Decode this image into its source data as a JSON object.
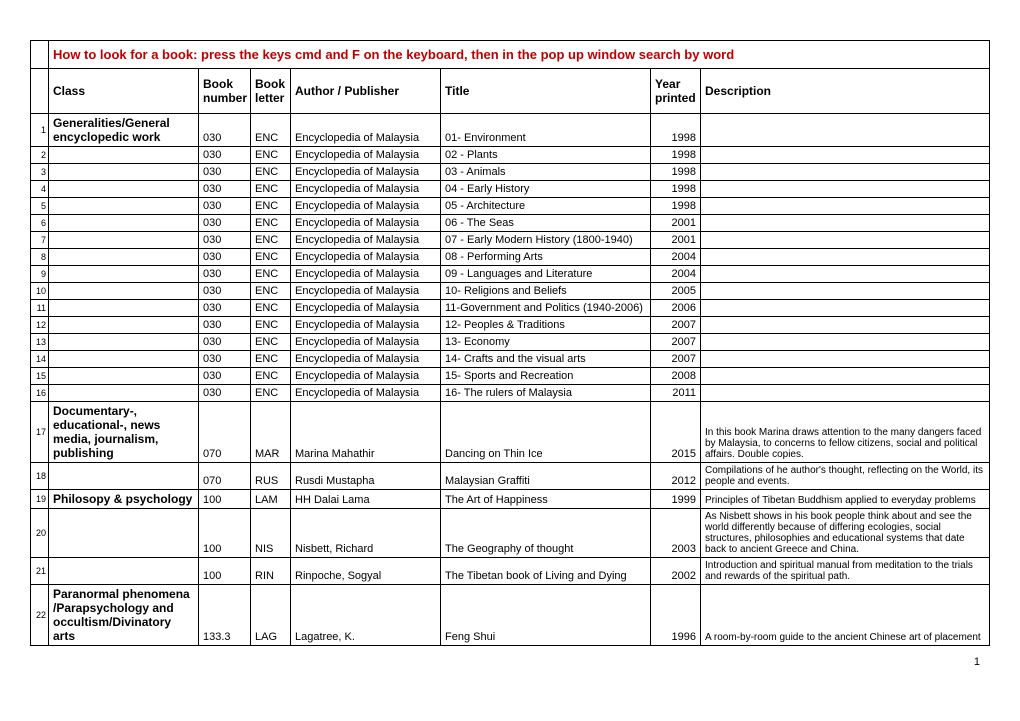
{
  "instruction": "How to look for a book: press the keys cmd and F on the keyboard, then in the pop up window search by word",
  "headers": {
    "class": "Class",
    "book_number": "Book number",
    "book_letter": "Book letter",
    "author": "Author / Publisher",
    "title": "Title",
    "year": "Year printed",
    "description": "Description"
  },
  "rows": [
    {
      "n": "1",
      "class": "Generalities/General encyclopedic work",
      "class_bold": true,
      "bn": "030",
      "bl": "ENC",
      "auth": "Encyclopedia of Malaysia",
      "title": "01- Environment",
      "year": "1998",
      "desc": ""
    },
    {
      "n": "2",
      "class": "",
      "bn": "030",
      "bl": "ENC",
      "auth": "Encyclopedia of Malaysia",
      "title": "02 - Plants",
      "year": "1998",
      "desc": ""
    },
    {
      "n": "3",
      "class": "",
      "bn": "030",
      "bl": "ENC",
      "auth": "Encyclopedia of Malaysia",
      "title": "03 - Animals",
      "year": "1998",
      "desc": ""
    },
    {
      "n": "4",
      "class": "",
      "bn": "030",
      "bl": "ENC",
      "auth": "Encyclopedia of Malaysia",
      "title": "04 - Early History",
      "year": "1998",
      "desc": ""
    },
    {
      "n": "5",
      "class": "",
      "bn": "030",
      "bl": "ENC",
      "auth": "Encyclopedia of Malaysia",
      "title": "05 - Architecture",
      "year": "1998",
      "desc": ""
    },
    {
      "n": "6",
      "class": "",
      "bn": "030",
      "bl": "ENC",
      "auth": "Encyclopedia of Malaysia",
      "title": "06 - The Seas",
      "year": "2001",
      "desc": ""
    },
    {
      "n": "7",
      "class": "",
      "bn": "030",
      "bl": "ENC",
      "auth": "Encyclopedia of Malaysia",
      "title": "07 - Early Modern History (1800-1940)",
      "year": "2001",
      "desc": ""
    },
    {
      "n": "8",
      "class": "",
      "bn": "030",
      "bl": "ENC",
      "auth": "Encyclopedia of Malaysia",
      "title": "08 - Performing Arts",
      "year": "2004",
      "desc": ""
    },
    {
      "n": "9",
      "class": "",
      "bn": "030",
      "bl": "ENC",
      "auth": "Encyclopedia of Malaysia",
      "title": "09 - Languages and Literature",
      "year": "2004",
      "desc": ""
    },
    {
      "n": "10",
      "class": "",
      "bn": "030",
      "bl": "ENC",
      "auth": "Encyclopedia of Malaysia",
      "title": "10- Religions and Beliefs",
      "year": "2005",
      "desc": ""
    },
    {
      "n": "11",
      "class": "",
      "bn": "030",
      "bl": "ENC",
      "auth": "Encyclopedia of Malaysia",
      "title": "11-Government and Politics (1940-2006)",
      "year": "2006",
      "desc": ""
    },
    {
      "n": "12",
      "class": "",
      "bn": "030",
      "bl": "ENC",
      "auth": "Encyclopedia of Malaysia",
      "title": "12- Peoples & Traditions",
      "year": "2007",
      "desc": ""
    },
    {
      "n": "13",
      "class": "",
      "bn": "030",
      "bl": "ENC",
      "auth": "Encyclopedia of Malaysia",
      "title": "13- Economy",
      "year": "2007",
      "desc": ""
    },
    {
      "n": "14",
      "class": "",
      "bn": "030",
      "bl": "ENC",
      "auth": "Encyclopedia of Malaysia",
      "title": "14- Crafts and the visual arts",
      "year": "2007",
      "desc": ""
    },
    {
      "n": "15",
      "class": "",
      "bn": "030",
      "bl": "ENC",
      "auth": "Encyclopedia of Malaysia",
      "title": "15- Sports and Recreation",
      "year": "2008",
      "desc": ""
    },
    {
      "n": "16",
      "class": "",
      "bn": "030",
      "bl": "ENC",
      "auth": "Encyclopedia of Malaysia",
      "title": "16- The rulers of Malaysia",
      "year": "2011",
      "desc": ""
    },
    {
      "n": "17",
      "class": "Documentary-, educational-, news media, journalism, publishing",
      "class_bold": true,
      "bn": "070",
      "bl": "MAR",
      "auth": "Marina Mahathir",
      "title": "Dancing on Thin Ice",
      "year": "2015",
      "desc": "In this book Marina draws attention to the many dangers faced by Malaysia, to concerns to fellow citizens, social and political affairs. Double copies."
    },
    {
      "n": "18",
      "class": "",
      "bn": "070",
      "bl": "RUS",
      "auth": "Rusdi Mustapha",
      "title": "Malaysian Graffiti",
      "year": "2012",
      "desc": "Compilations of he author's thought, reflecting on the World, its people and events."
    },
    {
      "n": "19",
      "class": "Philosopy & psychology",
      "class_bold": true,
      "bn": "100",
      "bl": "LAM",
      "auth": "HH Dalai Lama",
      "title": "The Art of Happiness",
      "year": "1999",
      "desc": "Principles of Tibetan Buddhism applied to everyday problems"
    },
    {
      "n": "20",
      "class": "",
      "bn": "100",
      "bl": "NIS",
      "auth": "Nisbett, Richard",
      "title": "The Geography of thought",
      "year": "2003",
      "desc": "As Nisbett shows in his book people think about and see the world differently because of differing ecologies, social structures, philosophies and educational systems that date back to ancient Greece and China."
    },
    {
      "n": "21",
      "class": "",
      "bn": "100",
      "bl": "RIN",
      "auth": "Rinpoche, Sogyal",
      "title": "The Tibetan book of Living and Dying",
      "year": "2002",
      "desc": "Introduction and spiritual manual from meditation to the trials and rewards of the spiritual path."
    },
    {
      "n": "22",
      "class": "Paranormal phenomena /Parapsychology and occultism/Divinatory arts",
      "class_bold": true,
      "bn": "133.3",
      "bl": "LAG",
      "auth": "Lagatree, K.",
      "title": "Feng Shui",
      "year": "1996",
      "desc": "A room-by-room guide to the ancient Chinese art of placement"
    }
  ],
  "page_number": "1"
}
